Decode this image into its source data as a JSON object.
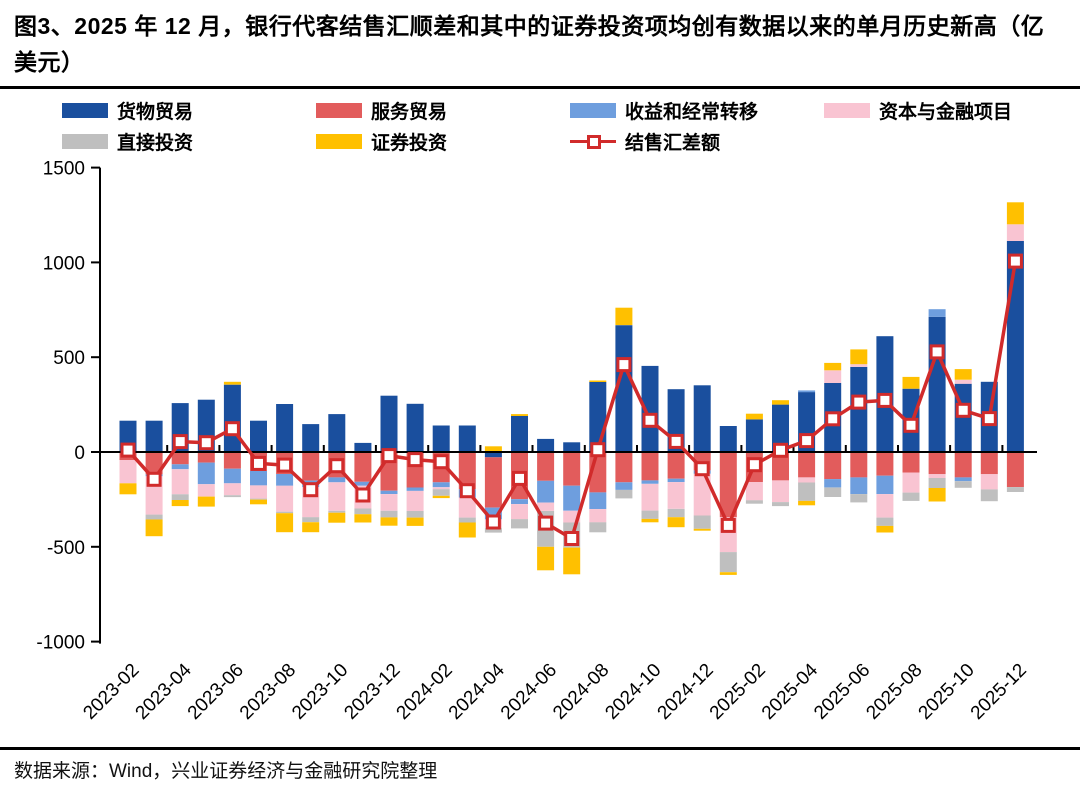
{
  "title": "图3、2025 年 12 月，银行代客结售汇顺差和其中的证券投资项均创有数据以来的单月历史新高（亿美元）",
  "footer": "数据来源：Wind，兴业证券经济与金融研究院整理",
  "legend": {
    "goods_trade": "货物贸易",
    "services_trade": "服务贸易",
    "income_transfers": "收益和经常转移",
    "capital_financial": "资本与金融项目",
    "direct_investment": "直接投资",
    "securities_investment": "证券投资",
    "settlement_balance": "结售汇差额"
  },
  "chart_data": {
    "type": "bar",
    "subtype": "stacked-bar-with-line",
    "title": "银行代客结售汇顺差分项（亿美元）",
    "ylabel": "亿美元",
    "ylim": [
      -1000,
      1500
    ],
    "yticks": [
      1500,
      1000,
      500,
      0,
      -500,
      -1000
    ],
    "grid": false,
    "legend_position": "top",
    "categories": [
      "2023-02",
      "2023-03",
      "2023-04",
      "2023-05",
      "2023-06",
      "2023-07",
      "2023-08",
      "2023-09",
      "2023-10",
      "2023-11",
      "2023-12",
      "2024-01",
      "2024-02",
      "2024-03",
      "2024-04",
      "2024-05",
      "2024-06",
      "2024-07",
      "2024-08",
      "2024-09",
      "2024-10",
      "2024-11",
      "2024-12",
      "2025-01",
      "2025-02",
      "2025-03",
      "2025-04",
      "2025-05",
      "2025-06",
      "2025-07",
      "2025-08",
      "2025-09",
      "2025-10",
      "2025-11",
      "2025-12"
    ],
    "x_tick_labels": [
      "2023-02",
      "2023-04",
      "2023-06",
      "2023-08",
      "2023-10",
      "2023-12",
      "2024-02",
      "2024-04",
      "2024-06",
      "2024-08",
      "2024-10",
      "2024-12",
      "2025-02",
      "2025-04",
      "2025-06",
      "2025-08",
      "2025-10",
      "2025-12"
    ],
    "series": [
      {
        "key": "goods_trade",
        "label": "货物贸易",
        "color": "#1A4F9E",
        "values": [
          165,
          165,
          258,
          276,
          355,
          165,
          253,
          147,
          200,
          48,
          297,
          254,
          140,
          140,
          -28,
          190,
          69,
          51,
          369,
          669,
          454,
          331,
          352,
          137,
          172,
          250,
          316,
          364,
          449,
          611,
          334,
          713,
          360,
          370,
          1113
        ]
      },
      {
        "key": "services_trade",
        "label": "服务贸易",
        "color": "#E25C5C",
        "values": [
          -42,
          -118,
          -65,
          -56,
          -88,
          -100,
          -116,
          -151,
          -134,
          -157,
          -204,
          -187,
          -160,
          -196,
          -265,
          -249,
          -152,
          -178,
          -213,
          -160,
          -150,
          -141,
          -97,
          -343,
          -158,
          -150,
          -134,
          -143,
          -134,
          -125,
          -108,
          -117,
          -134,
          -117,
          -185
        ]
      },
      {
        "key": "income_transfers",
        "label": "收益和经常转移",
        "color": "#6E9EDE",
        "values": [
          0,
          -10,
          -26,
          -114,
          -77,
          -76,
          -62,
          -35,
          -26,
          -21,
          -18,
          -18,
          -26,
          -44,
          -62,
          -26,
          -115,
          -132,
          -88,
          -40,
          -18,
          -18,
          -18,
          0,
          0,
          0,
          9,
          -44,
          -88,
          -97,
          0,
          40,
          -20,
          0,
          0
        ]
      },
      {
        "key": "capital_financial",
        "label": "资本与金融项目",
        "color": "#F9C4D2",
        "values": [
          -123,
          -202,
          -132,
          -65,
          -63,
          -70,
          -137,
          -158,
          -150,
          -120,
          -88,
          -106,
          -10,
          -106,
          -44,
          -79,
          -44,
          -62,
          -70,
          0,
          -141,
          -141,
          -220,
          -185,
          -97,
          -114,
          -27,
          67,
          14,
          -124,
          -106,
          -20,
          21,
          -80,
          88
        ]
      },
      {
        "key": "direct_investment",
        "label": "直接投资",
        "color": "#BFBFBF",
        "values": [
          0,
          -26,
          -30,
          0,
          -10,
          -5,
          -8,
          -26,
          -10,
          -30,
          -35,
          -35,
          -35,
          -26,
          -26,
          -49,
          -189,
          -132,
          -53,
          -45,
          -44,
          -44,
          -70,
          -106,
          -18,
          -21,
          -97,
          -50,
          -44,
          -44,
          -44,
          -53,
          -35,
          -62,
          -26
        ]
      },
      {
        "key": "securities_investment",
        "label": "证券投资",
        "color": "#FFC000",
        "values": [
          -58,
          -88,
          -32,
          -53,
          15,
          -25,
          -100,
          -53,
          -53,
          -44,
          -44,
          -44,
          -12,
          -79,
          30,
          10,
          -124,
          -141,
          8,
          92,
          -18,
          -53,
          -10,
          -14,
          30,
          23,
          -23,
          39,
          78,
          -35,
          62,
          -71,
          56,
          0,
          116
        ]
      }
    ],
    "line_series": {
      "key": "settlement_balance",
      "label": "结售汇差额",
      "color": "#D12B2B",
      "marker": "open-square",
      "values": [
        10,
        -144,
        55,
        49,
        123,
        -60,
        -69,
        -199,
        -72,
        -227,
        -19,
        -40,
        -51,
        -204,
        -369,
        -139,
        -375,
        -456,
        12,
        461,
        167,
        56,
        -88,
        -387,
        -67,
        9,
        60,
        175,
        263,
        272,
        141,
        528,
        220,
        176,
        1007
      ]
    }
  }
}
